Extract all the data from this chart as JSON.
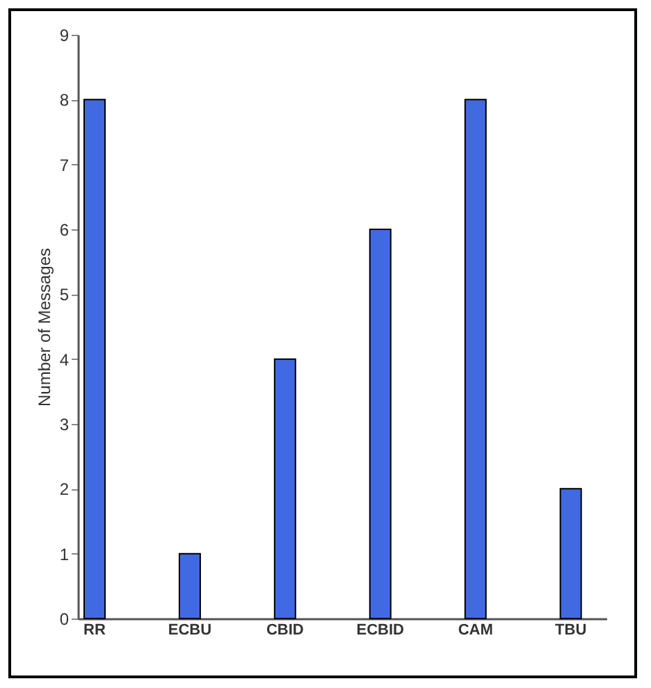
{
  "chart_data": {
    "type": "bar",
    "ylabel": "Number of Messages",
    "categories": [
      "RR",
      "ECBU",
      "CBID",
      "ECBID",
      "CAM",
      "TBU"
    ],
    "values": [
      8,
      1,
      4,
      6,
      8,
      2
    ],
    "color": "#4169e1",
    "ylim": [
      0,
      9
    ],
    "yticks": [
      0,
      1,
      2,
      3,
      4,
      5,
      6,
      7,
      8,
      9
    ],
    "grid": false,
    "legend": false
  }
}
